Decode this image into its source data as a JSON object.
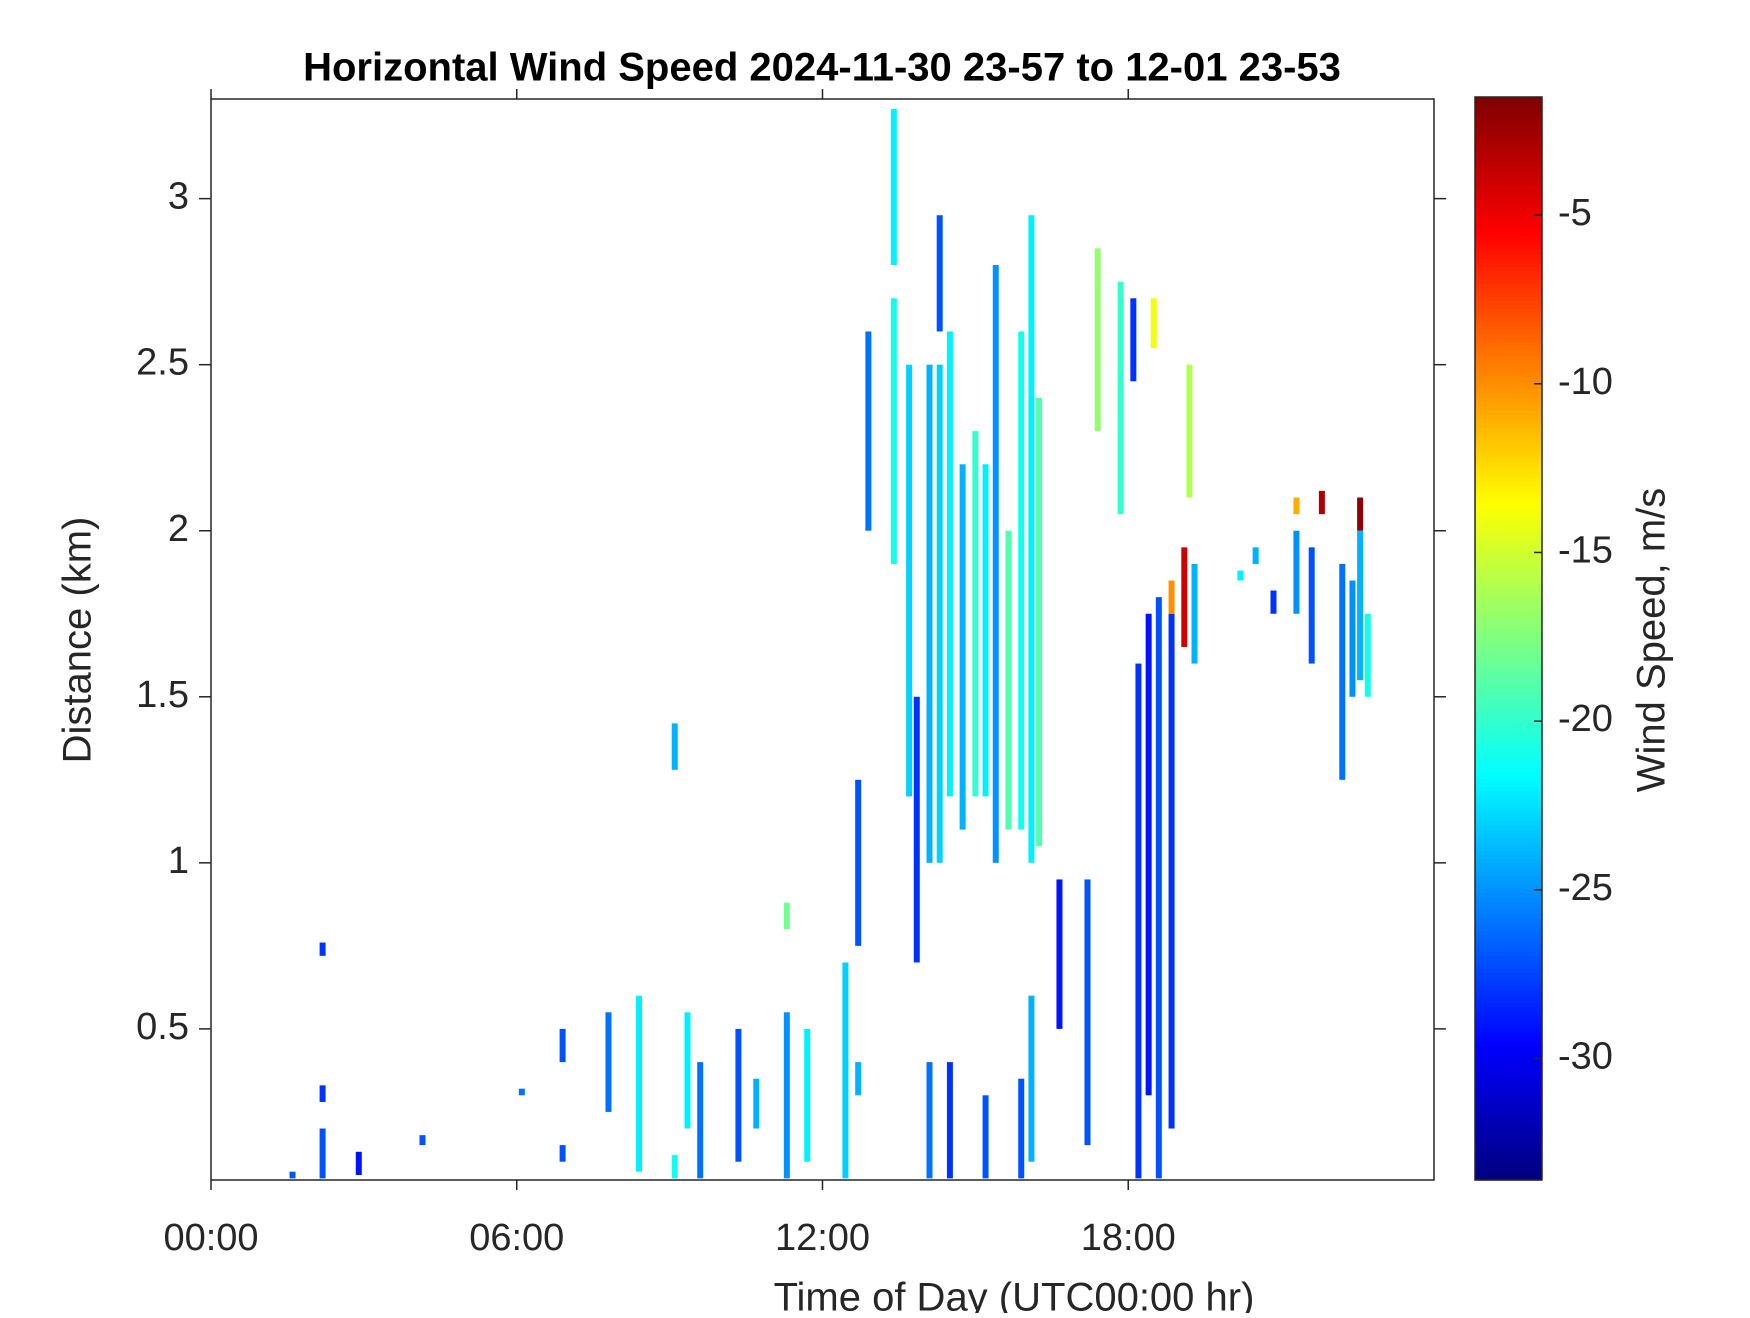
{
  "chart_data": {
    "type": "heatmap",
    "title": "Horizontal Wind Speed 2024-11-30 23-57 to 12-01 23-53",
    "x_label": "Time of Day (UTC00:00 hr)",
    "y_label": "Distance (km)",
    "colorbar_label": "Wind Speed, m/s",
    "colormap": "jet",
    "xlim": [
      0,
      24
    ],
    "xticks": [
      {
        "value": 0,
        "label": "00:00"
      },
      {
        "value": 6,
        "label": "06:00"
      },
      {
        "value": 12,
        "label": "12:00"
      },
      {
        "value": 18,
        "label": "18:00"
      }
    ],
    "ylim": [
      0.045,
      3.3
    ],
    "yticks": [
      0.5,
      1,
      1.5,
      2,
      2.5,
      3
    ],
    "clim": [
      -33.6,
      -1.5
    ],
    "cticks": [
      -5,
      -10,
      -15,
      -20,
      -25,
      -30
    ],
    "x": [
      2.19,
      2.19,
      2.19,
      1.6,
      2.9,
      4.15,
      6.1,
      6.9,
      6.9,
      7.8,
      8.4,
      9.1,
      9.1,
      9.35,
      9.6,
      10.35,
      10.7,
      11.3,
      11.3,
      11.7,
      12.45,
      12.7,
      12.7,
      12.9,
      13.4,
      13.4,
      13.7,
      13.85,
      14.1,
      14.1,
      14.3,
      14.3,
      14.5,
      14.5,
      14.75,
      15.0,
      15.2,
      15.2,
      15.4,
      15.65,
      15.9,
      15.9,
      16.1,
      16.1,
      16.25,
      16.65,
      17.2,
      17.4,
      17.85,
      18.1,
      18.2,
      18.4,
      18.5,
      18.6,
      18.85,
      18.85,
      19.1,
      19.2,
      19.3,
      20.2,
      20.5,
      20.85,
      21.3,
      21.3,
      21.6,
      21.8,
      22.2,
      22.4,
      22.55,
      22.55,
      22.7
    ],
    "y0": [
      0.72,
      0.28,
      0.05,
      0.05,
      0.06,
      0.15,
      0.3,
      0.4,
      0.1,
      0.25,
      0.07,
      1.28,
      0.05,
      0.2,
      0.05,
      0.1,
      0.2,
      0.8,
      0.05,
      0.1,
      0.05,
      0.75,
      0.3,
      2.0,
      2.8,
      1.9,
      1.2,
      0.7,
      0.05,
      1.0,
      2.6,
      1.0,
      0.05,
      1.2,
      1.1,
      1.2,
      0.05,
      1.2,
      1.0,
      1.1,
      1.1,
      0.05,
      1.0,
      0.1,
      1.05,
      0.5,
      0.15,
      2.3,
      2.05,
      2.45,
      0.05,
      0.3,
      2.55,
      0.05,
      0.2,
      1.75,
      1.65,
      2.1,
      1.6,
      1.85,
      1.9,
      1.75,
      1.75,
      2.05,
      1.6,
      2.05,
      1.25,
      1.5,
      2.0,
      1.55,
      1.5
    ],
    "y1": [
      0.76,
      0.33,
      0.2,
      0.07,
      0.13,
      0.18,
      0.32,
      0.5,
      0.15,
      0.55,
      0.6,
      1.42,
      0.12,
      0.55,
      0.4,
      0.5,
      0.35,
      0.88,
      0.55,
      0.5,
      0.7,
      1.25,
      0.4,
      2.6,
      3.27,
      2.7,
      2.5,
      1.5,
      0.4,
      2.5,
      2.95,
      2.5,
      0.4,
      2.6,
      2.2,
      2.3,
      0.3,
      2.2,
      2.8,
      2.0,
      2.6,
      0.35,
      2.95,
      0.6,
      2.4,
      0.95,
      0.95,
      2.85,
      2.75,
      2.7,
      1.6,
      1.75,
      2.7,
      1.8,
      1.75,
      1.85,
      1.95,
      2.5,
      1.9,
      1.88,
      1.95,
      1.82,
      2.0,
      2.1,
      1.95,
      2.12,
      1.9,
      1.85,
      2.1,
      2.0,
      1.75
    ],
    "values": [
      -28,
      -28,
      -27,
      -27,
      -29,
      -27,
      -26,
      -27,
      -27,
      -26,
      -22,
      -24,
      -21,
      -22,
      -26,
      -27,
      -24,
      -18,
      -25,
      -22,
      -23,
      -27,
      -24,
      -26,
      -22,
      -21,
      -23,
      -28,
      -26,
      -24,
      -27,
      -23,
      -28,
      -22,
      -24,
      -20,
      -27,
      -22,
      -25,
      -19,
      -21,
      -27,
      -22,
      -24,
      -19,
      -29,
      -27,
      -17,
      -20,
      -28,
      -28,
      -29,
      -14,
      -27,
      -28,
      -10,
      -4,
      -16,
      -24,
      -22,
      -24,
      -28,
      -25,
      -11,
      -27,
      -3,
      -26,
      -25,
      -2,
      -24,
      -21
    ]
  }
}
